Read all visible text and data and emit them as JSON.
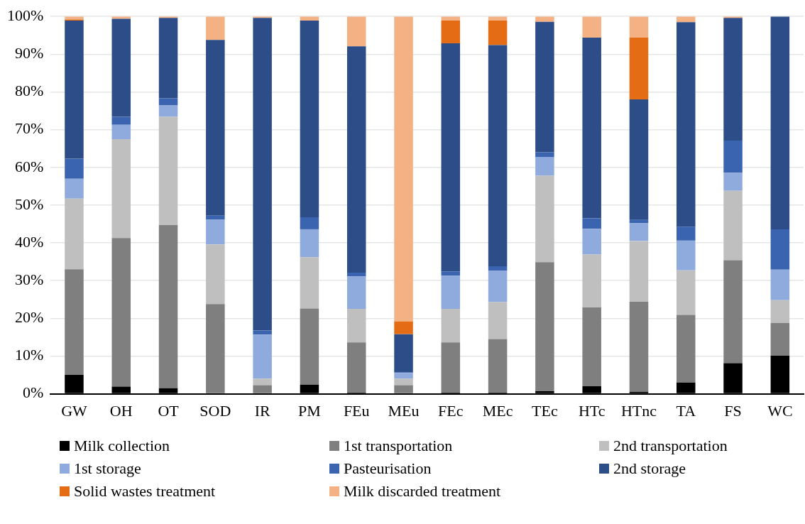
{
  "chart_data": {
    "type": "bar",
    "stacked": true,
    "categories": [
      "GW",
      "OH",
      "OT",
      "SOD",
      "IR",
      "PM",
      "FEu",
      "MEu",
      "FEc",
      "MEc",
      "TEc",
      "HTc",
      "HTnc",
      "TA",
      "FS",
      "WC"
    ],
    "ylim": [
      0,
      100
    ],
    "yticks": [
      {
        "value": 0,
        "label": "0%"
      },
      {
        "value": 10,
        "label": "10%"
      },
      {
        "value": 20,
        "label": "20%"
      },
      {
        "value": 30,
        "label": "30%"
      },
      {
        "value": 40,
        "label": "40%"
      },
      {
        "value": 50,
        "label": "50%"
      },
      {
        "value": 60,
        "label": "60%"
      },
      {
        "value": 70,
        "label": "70%"
      },
      {
        "value": 80,
        "label": "80%"
      },
      {
        "value": 90,
        "label": "90%"
      },
      {
        "value": 100,
        "label": "100%"
      }
    ],
    "grid": "y",
    "legend": "bottom",
    "series": [
      {
        "name": "Milk collection",
        "color": "#000000",
        "values": [
          5,
          1.9,
          1.5,
          0,
          0,
          2.4,
          0.3,
          0,
          0.3,
          0.3,
          0.7,
          2,
          0.5,
          3,
          8.1,
          10.1
        ]
      },
      {
        "name": "1st transportation",
        "color": "#7f7f7f",
        "values": [
          28,
          39.4,
          43.2,
          23.8,
          2.3,
          20.2,
          13.3,
          2.3,
          13.3,
          14.2,
          34.2,
          20.9,
          23.9,
          17.9,
          27.3,
          8.7
        ]
      },
      {
        "name": "2nd transportation",
        "color": "#bfbfbf",
        "values": [
          18.7,
          26.2,
          28.7,
          15.8,
          1.7,
          13.6,
          8.9,
          1.7,
          8.9,
          9.8,
          22.9,
          14,
          16.1,
          11.8,
          18.4,
          6
        ]
      },
      {
        "name": "1st storage",
        "color": "#8faadc",
        "values": [
          5.3,
          3.8,
          3,
          6.6,
          11.7,
          7.4,
          8.6,
          1.5,
          8.8,
          8.3,
          5,
          6.8,
          4.7,
          7.9,
          4.8,
          8.1
        ]
      },
      {
        "name": "Pasteurisation",
        "color": "#3a64b0",
        "values": [
          5.3,
          2.1,
          1.9,
          1,
          1.1,
          3.2,
          1,
          0.2,
          1.1,
          1.2,
          1.2,
          2.8,
          0.9,
          3.7,
          8.5,
          10.7
        ]
      },
      {
        "name": "2nd storage",
        "color": "#2c4d88",
        "values": [
          36.6,
          26,
          21.3,
          46.6,
          82.8,
          52.1,
          60,
          10.1,
          60.5,
          58.6,
          34.6,
          47.9,
          31.9,
          54.2,
          32.5,
          56.4
        ]
      },
      {
        "name": "Solid wastes treatment",
        "color": "#e46c14",
        "values": [
          0.3,
          0,
          0,
          0,
          0,
          0,
          0,
          3.4,
          6,
          6.5,
          0,
          0,
          16.4,
          0,
          0,
          0
        ]
      },
      {
        "name": "Milk discarded treatment",
        "color": "#f4b183",
        "values": [
          0.8,
          0.6,
          0.4,
          6.2,
          0.4,
          1.1,
          7.9,
          80.8,
          1.1,
          1.1,
          1.4,
          5.6,
          5.6,
          1.5,
          0.4,
          0
        ]
      }
    ]
  }
}
